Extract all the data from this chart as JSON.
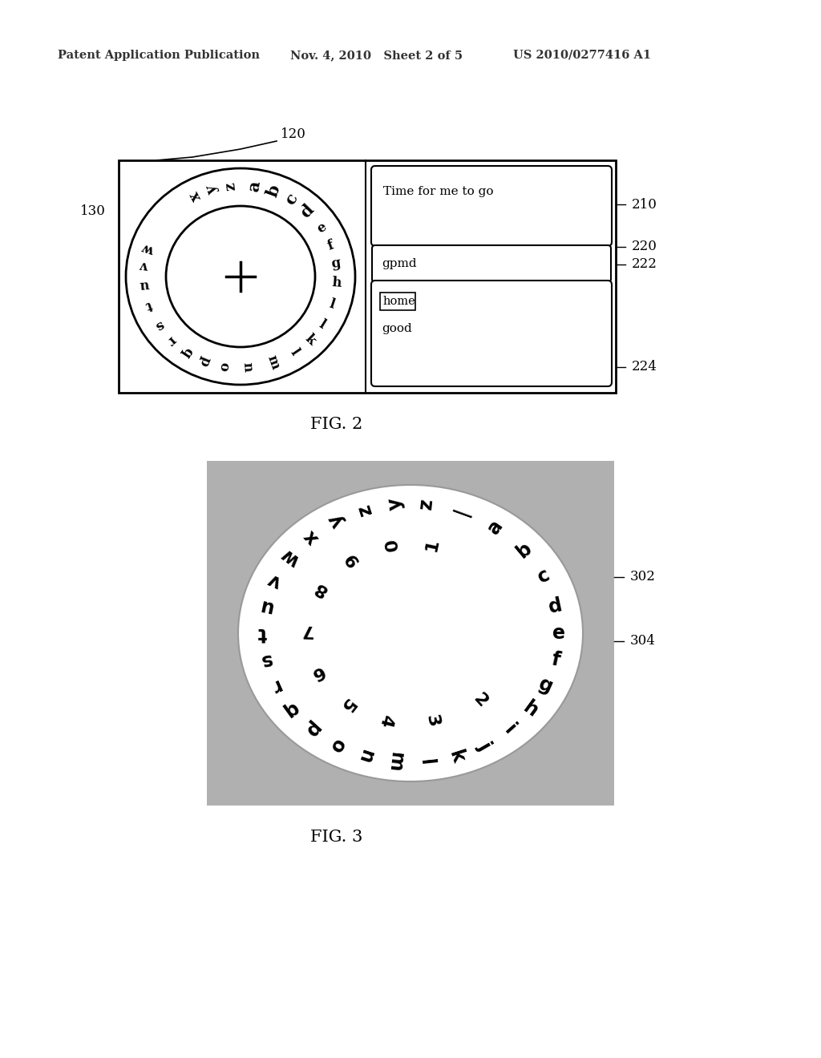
{
  "header_left": "Patent Application Publication",
  "header_mid": "Nov. 4, 2010   Sheet 2 of 5",
  "header_right": "US 2010/0277416 A1",
  "fig2_label": "FIG. 2",
  "fig3_label": "FIG. 3",
  "label_120": "120",
  "label_130": "130",
  "label_210": "210",
  "label_220": "220",
  "label_222": "222",
  "label_224": "224",
  "label_302": "302",
  "label_304": "304",
  "text_210": "Time for me to go",
  "text_222": "gpmd",
  "text_224a": "home",
  "text_224b": "good",
  "background": "#ffffff"
}
